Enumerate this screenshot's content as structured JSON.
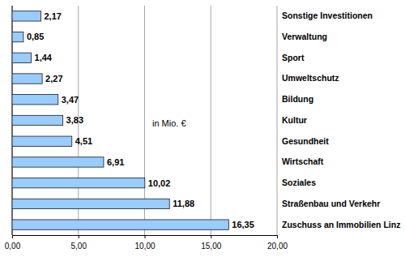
{
  "chart_data": {
    "type": "bar",
    "orientation": "horizontal",
    "categories": [
      "Sonstige Investitionen",
      "Verwaltung",
      "Sport",
      "Umweltschutz",
      "Bildung",
      "Kultur",
      "Gesundheit",
      "Wirtschaft",
      "Soziales",
      "Straßenbau und Verkehr",
      "Zuschuss an Immobilien Linz"
    ],
    "values": [
      2.17,
      0.85,
      1.44,
      2.27,
      3.47,
      3.83,
      4.51,
      6.91,
      10.02,
      11.88,
      16.35
    ],
    "value_labels": [
      "2,17",
      "0,85",
      "1,44",
      "2,27",
      "3,47",
      "3,83",
      "4,51",
      "6,91",
      "10,02",
      "11,88",
      "16,35"
    ],
    "color": "#99ccff",
    "xlim": [
      0,
      20
    ],
    "xticks": [
      {
        "value": 0,
        "label": "0,00"
      },
      {
        "value": 5,
        "label": "5,00"
      },
      {
        "value": 10,
        "label": "10,00"
      },
      {
        "value": 15,
        "label": "15,00"
      },
      {
        "value": 20,
        "label": "20,00"
      }
    ],
    "grid": true,
    "data_labels": true,
    "annotations": [
      "in Mio. €"
    ]
  }
}
